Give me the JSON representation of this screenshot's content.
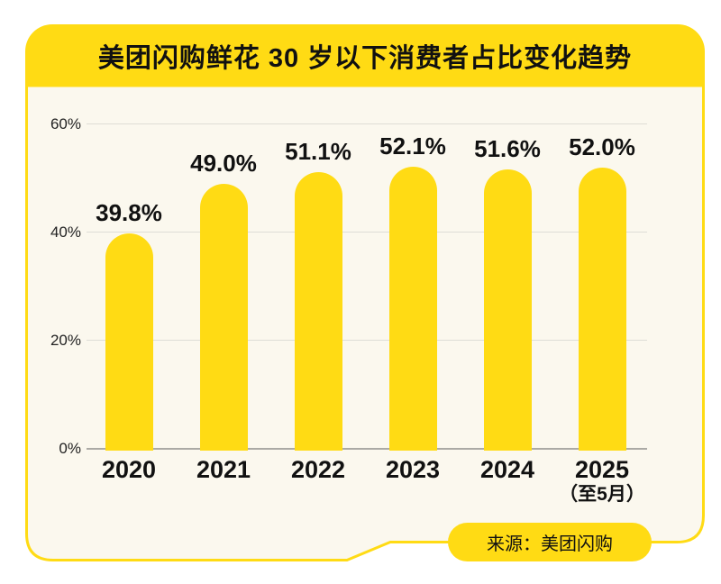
{
  "card": {
    "title": "美团闪购鲜花 30 岁以下消费者占比变化趋势",
    "source_label": "来源：美团闪购",
    "colors": {
      "yellow": "#FFDB14",
      "cream": "#FBF8EE",
      "text": "#111111",
      "gridline": "#DEDDD6",
      "baseline": "#ABAAA5",
      "page_background": "#FFFFFF"
    }
  },
  "chart_data": {
    "type": "bar",
    "title": "美团闪购鲜花 30 岁以下消费者占比变化趋势",
    "categories": [
      "2020",
      "2021",
      "2022",
      "2023",
      "2024",
      "2025"
    ],
    "category_sublabels": [
      "",
      "",
      "",
      "",
      "",
      "（至5月）"
    ],
    "values": [
      39.8,
      49.0,
      51.1,
      52.1,
      51.6,
      52.0
    ],
    "value_labels": [
      "39.8%",
      "49.0%",
      "51.1%",
      "52.1%",
      "51.6%",
      "52.0%"
    ],
    "y_ticks": [
      "0%",
      "20%",
      "40%",
      "60%"
    ],
    "y_tick_values": [
      0,
      20,
      40,
      60
    ],
    "ylim": [
      0,
      60
    ],
    "ylabel": "",
    "xlabel": "",
    "grid": true,
    "legend": "none",
    "bar_color": "#FFDB14",
    "source": "来源：美团闪购"
  }
}
